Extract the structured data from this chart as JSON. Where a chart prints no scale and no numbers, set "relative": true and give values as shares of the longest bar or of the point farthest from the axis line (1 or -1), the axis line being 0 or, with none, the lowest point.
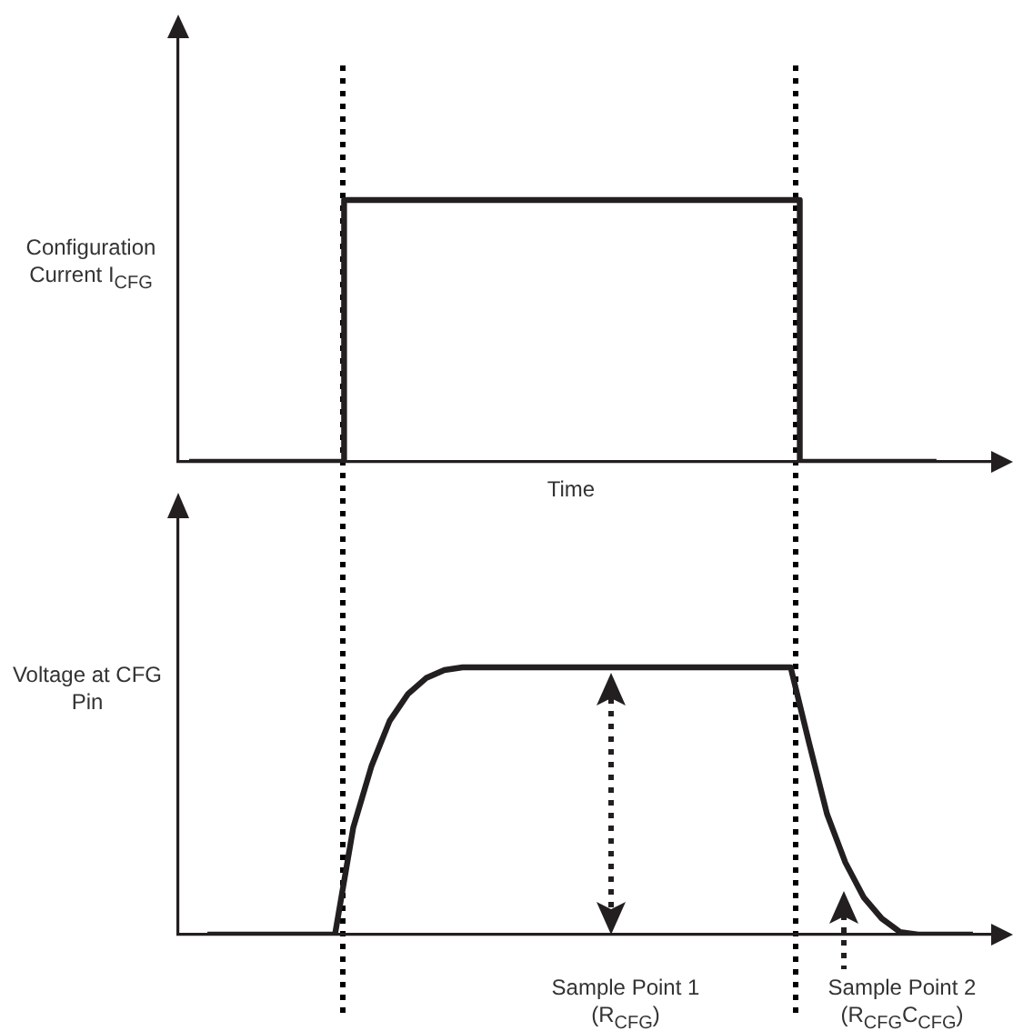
{
  "chart_data": [
    {
      "type": "step",
      "relative": true,
      "xlabel": "Time",
      "ylabel": "Configuration Current I$_{CFG}$",
      "color": "#231f20",
      "categories": [
        null,
        null,
        null,
        null,
        null,
        null,
        null,
        null,
        null,
        null,
        null,
        null,
        null,
        null,
        null,
        null,
        null,
        null,
        null,
        null,
        null,
        null,
        null,
        null,
        null,
        null,
        null,
        null,
        null,
        null,
        null,
        null,
        null,
        null,
        null,
        null,
        null,
        null,
        null,
        null,
        null,
        null,
        null,
        null
      ],
      "values": [
        0,
        0,
        0,
        0,
        0,
        0,
        0,
        0,
        0,
        1,
        1,
        1,
        1,
        1,
        1,
        1,
        1,
        1,
        1,
        1,
        1,
        1,
        1,
        1,
        1,
        1,
        1,
        1,
        1,
        1,
        1,
        1,
        1,
        1,
        0,
        0,
        0,
        0,
        0,
        0,
        0,
        0,
        null,
        null
      ]
    },
    {
      "type": "line",
      "relative": true,
      "ylabel": "Voltage at CFG Pin",
      "color": "#231f20",
      "categories": [
        null,
        null,
        null,
        null,
        null,
        null,
        null,
        null,
        null,
        null,
        null,
        null,
        null,
        null,
        null,
        null,
        null,
        null,
        null,
        null,
        null,
        null,
        null,
        null,
        null,
        null,
        null,
        null,
        null,
        null,
        null,
        null,
        null,
        null,
        null,
        null,
        null,
        null,
        null,
        null,
        null,
        null,
        null,
        null
      ],
      "values": [
        null,
        0,
        0,
        0,
        0,
        0,
        0,
        0,
        0,
        0.4,
        0.63,
        0.8,
        0.9,
        0.96,
        0.99,
        1,
        1,
        1,
        1,
        1,
        1,
        1,
        1,
        1,
        1,
        1,
        1,
        1,
        1,
        1,
        1,
        1,
        1,
        1,
        0.72,
        0.45,
        0.27,
        0.14,
        0.06,
        0.01,
        0,
        0,
        0,
        0
      ],
      "annotations": [
        "Sample Point 1 (R$_{CFG}$)",
        "Sample Point 2 (R$_{CFG}$C$_{CFG}$)"
      ]
    }
  ]
}
